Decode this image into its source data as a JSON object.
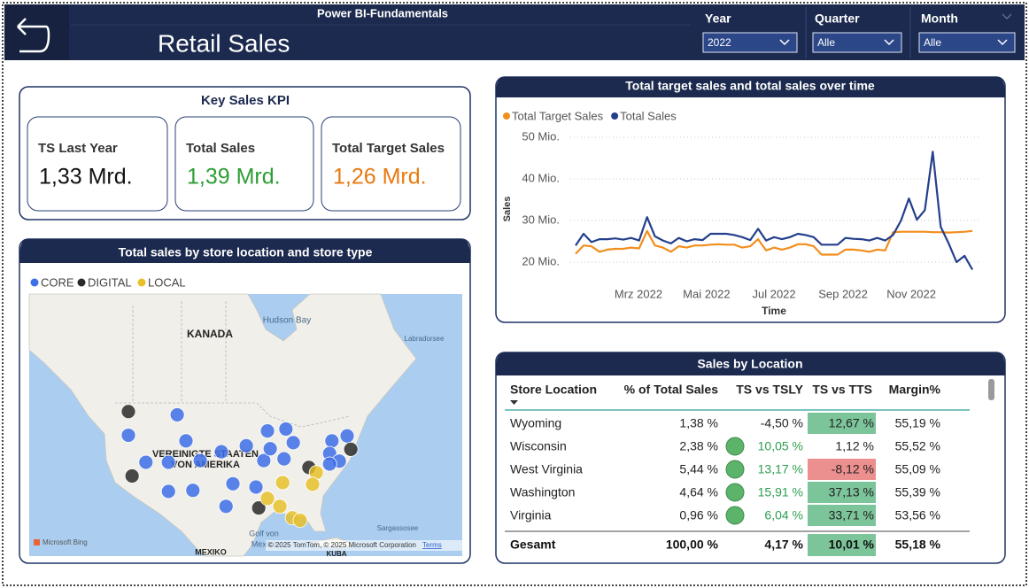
{
  "header": {
    "subtitle": "Power BI-Fundamentals",
    "title": "Retail Sales",
    "filters": [
      {
        "label": "Year",
        "value": "2022"
      },
      {
        "label": "Quarter",
        "value": "Alle"
      },
      {
        "label": "Month",
        "value": "Alle"
      }
    ]
  },
  "kpi": {
    "title": "Key Sales KPI",
    "cards": [
      {
        "label": "TS Last Year",
        "value": "1,33 Mrd.",
        "color": "#111111"
      },
      {
        "label": "Total Sales",
        "value": "1,39 Mrd.",
        "color": "#2e9e34"
      },
      {
        "label": "Total Target Sales",
        "value": "1,26 Mrd.",
        "color": "#e87a10"
      }
    ]
  },
  "map": {
    "title": "Total sales by store location and store type",
    "series": [
      {
        "name": "CORE",
        "color": "#3d6fe6",
        "lon": [
          -111.7,
          -122.3,
          -109.8,
          -118.5,
          -113.6,
          -106.7,
          -102.1,
          -96.7,
          -92.1,
          -88.1,
          -86.5,
          -88.5,
          -92.9,
          -99.6,
          -94.6,
          -113.6,
          -108.3,
          -101.1,
          -78.1,
          -74.8,
          -78.6,
          -76.5,
          -78.6,
          -91.5
        ],
        "lat": [
          47.1,
          43.9,
          43.0,
          39.4,
          39.4,
          39.7,
          41.2,
          42.2,
          44.6,
          44.9,
          42.7,
          40.0,
          39.7,
          35.6,
          35.0,
          34.2,
          34.4,
          31.4,
          43.0,
          43.8,
          40.9,
          39.6,
          39.1,
          41.7
        ]
      },
      {
        "name": "DIGITAL",
        "color": "#2a2a2a",
        "lon": [
          -122.3,
          -121.5,
          -83.1,
          -74.0,
          -94.0
        ],
        "lat": [
          47.6,
          37.0,
          38.5,
          41.6,
          31.1
        ]
      },
      {
        "name": "LOCAL",
        "color": "#e8c02a",
        "lon": [
          -88.8,
          -81.5,
          -82.3,
          -92.1,
          -89.4,
          -86.7,
          -85.0
        ],
        "lat": [
          35.8,
          37.6,
          35.5,
          32.9,
          31.4,
          29.2,
          28.7
        ]
      }
    ],
    "labels": [
      "KANADA",
      "Hudson Bay",
      "Labradorsee",
      "VEREINIGTE STAATEN",
      "VON AMERIKA",
      "Golf von",
      "Mexiko",
      "Sargassosee",
      "MEXIKO",
      "KUBA"
    ],
    "attribution": "© 2025 TomTom, © 2025 Microsoft Corporation",
    "terms": "Terms",
    "brand": "Microsoft Bing"
  },
  "chart_data": {
    "type": "line",
    "title": "Total target sales and total sales over time",
    "xlabel": "Time",
    "ylabel": "Sales",
    "legend": "top-left",
    "grid": true,
    "x": [
      1,
      2,
      3,
      4,
      5,
      6,
      7,
      8,
      9,
      10,
      11,
      12,
      13,
      14,
      15,
      16,
      17,
      18,
      19,
      20,
      21,
      22,
      23,
      24,
      25,
      26,
      27,
      28,
      29,
      30,
      31,
      32,
      33,
      34,
      35,
      36,
      37,
      38,
      39,
      40,
      41,
      42,
      43,
      44,
      45,
      46,
      47,
      48,
      49,
      50,
      51
    ],
    "xlim": [
      0.33,
      52.1
    ],
    "xticks": [
      {
        "value": 8.92,
        "label": "Mrz 2022"
      },
      {
        "value": 17.5,
        "label": "Mai 2022"
      },
      {
        "value": 26.0,
        "label": "Jul 2022"
      },
      {
        "value": 34.7,
        "label": "Sep 2022"
      },
      {
        "value": 43.3,
        "label": "Nov 2022"
      }
    ],
    "ylim": [
      15,
      52
    ],
    "yticks": [
      {
        "value": 20,
        "label": "20 Mio."
      },
      {
        "value": 30,
        "label": "30 Mio."
      },
      {
        "value": 40,
        "label": "40 Mio."
      },
      {
        "value": 50,
        "label": "50 Mio."
      }
    ],
    "series": [
      {
        "name": "Total Target Sales",
        "color": "#f28e1c",
        "values": [
          22,
          24,
          23.8,
          22.5,
          23,
          23.2,
          23.2,
          23.5,
          23.3,
          27.5,
          24,
          23.5,
          22.5,
          23.8,
          23.5,
          24,
          24,
          24.2,
          24.3,
          24.2,
          24.2,
          23.5,
          23.8,
          25.5,
          22.8,
          23.5,
          23,
          23.5,
          24.3,
          24.3,
          23.8,
          21.8,
          21.8,
          21.8,
          23,
          23,
          22.8,
          22.5,
          23,
          22.8,
          27.2,
          27.3,
          27.3,
          27.3,
          27.3,
          27.2,
          27.2,
          27.1,
          27.2,
          27.3,
          27.5
        ]
      },
      {
        "name": "Total Sales",
        "color": "#243f8c",
        "values": [
          24,
          26.8,
          24.8,
          25.5,
          25.5,
          25.7,
          25.4,
          25.8,
          25.2,
          30.8,
          26.2,
          25.2,
          24.5,
          25.8,
          25.0,
          25.5,
          25.3,
          26.8,
          26.8,
          26.8,
          26.5,
          26.0,
          25.3,
          28.0,
          25.2,
          26.0,
          25.5,
          26.0,
          26.8,
          26.5,
          26.0,
          24.2,
          24.2,
          24.2,
          25.8,
          25.6,
          25.5,
          25.2,
          25.8,
          25.2,
          26.5,
          30.0,
          35.3,
          30.2,
          32.5,
          46.5,
          28.5,
          24.5,
          20.0,
          21.5,
          18.2
        ]
      }
    ]
  },
  "table": {
    "title": "Sales by Location",
    "columns": [
      "Store Location",
      "% of Total Sales",
      "TS vs TSLY",
      "TS vs TTS",
      "Margin%"
    ],
    "rows": [
      [
        "Wyoming",
        "1,38 %",
        "-4,50 %",
        "12,67 %",
        "55,19 %"
      ],
      [
        "Wisconsin",
        "2,38 %",
        "10,05 %",
        "1,12 %",
        "55,52 %"
      ],
      [
        "West Virginia",
        "5,44 %",
        "13,17 %",
        "-8,12 %",
        "55,09 %"
      ],
      [
        "Washington",
        "4,64 %",
        "15,91 %",
        "37,13 %",
        "55,39 %"
      ],
      [
        "Virginia",
        "0,96 %",
        "6,04 %",
        "33,71 %",
        "53,56 %"
      ]
    ],
    "total": [
      "Gesamt",
      "100,00 %",
      "4,17 %",
      "10,01 %",
      "55,18 %"
    ]
  }
}
